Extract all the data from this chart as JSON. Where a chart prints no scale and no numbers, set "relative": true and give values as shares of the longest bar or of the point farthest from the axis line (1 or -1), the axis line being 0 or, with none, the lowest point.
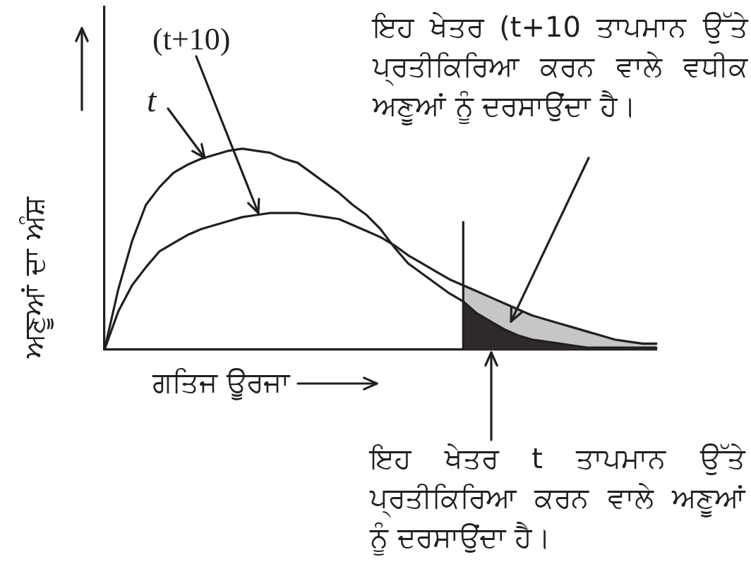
{
  "chart_data": {
    "type": "line",
    "relative": true,
    "xlabel": "ਗਤਿਜ ਊਰਜਾ",
    "ylabel": "ਅਣੂਆਂ ਦਾ ਅੰਸ਼",
    "categories": [
      null,
      null,
      null,
      null,
      null,
      null,
      null,
      null,
      null,
      null,
      null,
      null,
      null,
      null,
      null,
      null,
      null,
      null,
      null,
      null,
      null,
      null,
      null,
      null,
      null,
      null,
      null,
      null,
      null,
      null,
      null,
      null,
      null,
      null,
      null,
      null,
      null,
      null,
      null,
      null,
      null
    ],
    "series": [
      {
        "color": "#231f20",
        "values": [
          0,
          0.3,
          0.54,
          0.72,
          0.81,
          0.88,
          0.92,
          0.95,
          0.97,
          0.99,
          1,
          0.99,
          0.98,
          0.95,
          0.93,
          0.88,
          0.83,
          0.78,
          0.72,
          0.67,
          0.6,
          0.51,
          0.43,
          0.38,
          0.33,
          0.28,
          0.24,
          0.18,
          0.14,
          0.1,
          0.07,
          0.05,
          0.04,
          0.03,
          0.02,
          0.01,
          0.01,
          0.01,
          0.01,
          0.01,
          0.01
        ]
      },
      {
        "color": "#231f20",
        "values": [
          0,
          0.19,
          0.32,
          0.41,
          0.49,
          0.53,
          0.57,
          0.6,
          0.62,
          0.64,
          0.66,
          0.67,
          0.68,
          0.68,
          0.68,
          0.67,
          0.66,
          0.65,
          0.62,
          0.59,
          0.56,
          0.52,
          0.47,
          0.43,
          0.39,
          0.35,
          0.32,
          0.29,
          0.26,
          0.23,
          0.2,
          0.17,
          0.15,
          0.13,
          0.11,
          0.09,
          0.07,
          0.05,
          0.04,
          0.03,
          0.03
        ]
      },
      {
        "type": "area",
        "color": "#2e2a2b",
        "values": [
          null,
          null,
          null,
          null,
          null,
          null,
          null,
          null,
          null,
          null,
          null,
          null,
          null,
          null,
          null,
          null,
          null,
          null,
          null,
          null,
          null,
          null,
          null,
          null,
          null,
          null,
          0.24,
          0.18,
          0.14,
          0.1,
          0.07,
          0.05,
          0.04,
          0.03,
          0.02,
          0.01,
          0.01,
          0.01,
          0.01,
          0.01,
          0.01
        ]
      },
      {
        "type": "area",
        "color": "#c6c6c6",
        "values": [
          null,
          null,
          null,
          null,
          null,
          null,
          null,
          null,
          null,
          null,
          null,
          null,
          null,
          null,
          null,
          null,
          null,
          null,
          null,
          null,
          null,
          null,
          null,
          null,
          null,
          null,
          0.32,
          0.29,
          0.26,
          0.23,
          0.2,
          0.17,
          0.15,
          0.13,
          0.11,
          0.09,
          0.07,
          0.05,
          0.04,
          0.03,
          0.03
        ]
      }
    ],
    "annotations": [
      "t",
      "(t+10)",
      "ਇਹ ਖੇਤਰ (t+10 ਤਾਪਮਾਨ ਉੱਤੇ ਪ੍ਰਤੀਕਿਰਿਆ ਕਰਨ ਵਾਲੇ ਵਧੀਕ ਅਣੂਆਂ ਨੂੰ ਦਰਸਾਉਂਦਾ ਹੈ।",
      "ਇਹ ਖੇਤਰ t ਤਾਪਮਾਨ ਉੱਤੇ ਪ੍ਰਤੀਕਿਰਿਆ ਕਰਨ ਵਾਲੇ ਅਣੂਆਂ ਨੂੰ ਦਰਸਾਉਂਦਾ ਹੈ।"
    ],
    "tick_labels": false,
    "marker": "none"
  }
}
